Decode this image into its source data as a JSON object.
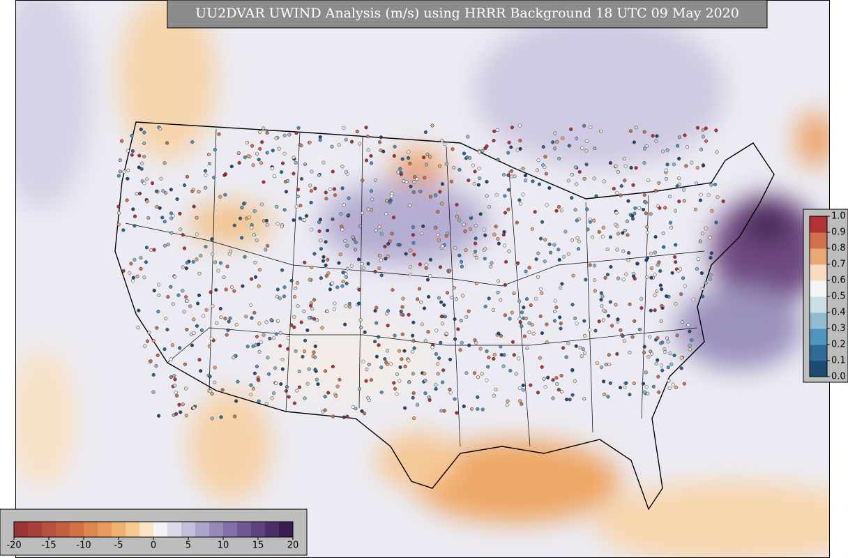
{
  "title": "UU2DVAR UWIND Analysis (m/s) using HRRR Background 18 UTC 09 May 2020",
  "wind_colorbar": {
    "ticks": [
      -20,
      -15,
      -10,
      -5,
      0,
      5,
      10,
      15,
      20
    ],
    "lim": [
      -20,
      20
    ],
    "colors": [
      "#9b3535",
      "#a8413a",
      "#b8503e",
      "#c65e42",
      "#d27048",
      "#de8550",
      "#e89a5e",
      "#efb272",
      "#f5c98f",
      "#fbe4c4",
      "#f4f2f6",
      "#dcd9ea",
      "#c4bedc",
      "#ada4cc",
      "#978aba",
      "#8370a8",
      "#705895",
      "#5e427f",
      "#4b2d68",
      "#3a1c52"
    ]
  },
  "station_colorbar": {
    "ticks": [
      {
        "value": 0,
        "label": "0.0"
      },
      0.1,
      0.2,
      0.3,
      0.4,
      0.5,
      0.6,
      0.7,
      0.8,
      0.9,
      {
        "value": 1,
        "label": "1.0"
      }
    ],
    "lim": [
      0,
      1
    ],
    "colors": [
      "#1e4a74",
      "#2e6b96",
      "#4f95bd",
      "#93bbcf",
      "#cddde4",
      "#f4f4f4",
      "#f7dcc2",
      "#e9a873",
      "#d2704d",
      "#b3323a"
    ]
  }
}
